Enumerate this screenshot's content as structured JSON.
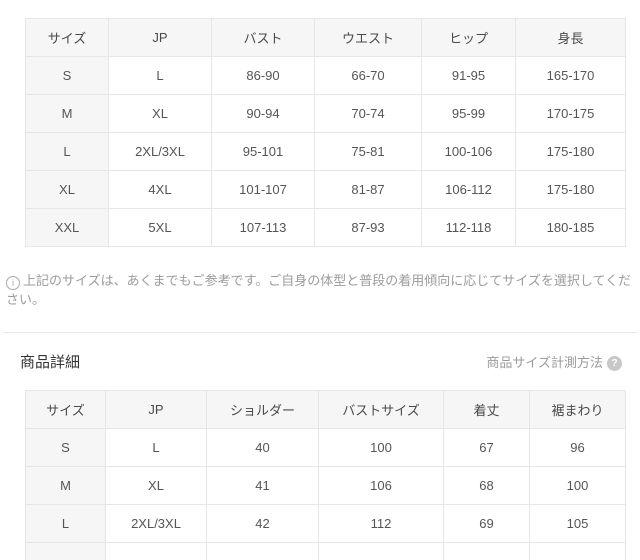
{
  "body_size_chart": {
    "columns": [
      "サイズ",
      "JP",
      "バスト",
      "ウエスト",
      "ヒップ",
      "身長"
    ],
    "rows": [
      [
        "S",
        "L",
        "86-90",
        "66-70",
        "91-95",
        "165-170"
      ],
      [
        "M",
        "XL",
        "90-94",
        "70-74",
        "95-99",
        "170-175"
      ],
      [
        "L",
        "2XL/3XL",
        "95-101",
        "75-81",
        "100-106",
        "175-180"
      ],
      [
        "XL",
        "4XL",
        "101-107",
        "81-87",
        "106-112",
        "175-180"
      ],
      [
        "XXL",
        "5XL",
        "107-113",
        "87-93",
        "112-118",
        "180-185"
      ]
    ]
  },
  "note": {
    "icon": "i",
    "text": "上記のサイズは、あくまでもご参考です。ご自身の体型と普段の着用傾向に応じてサイズを選択してください。"
  },
  "detail_section": {
    "title": "商品詳細",
    "measure_link_label": "商品サイズ計測方法",
    "help_icon": "?"
  },
  "product_detail_chart": {
    "columns": [
      "サイズ",
      "JP",
      "ショルダー",
      "バストサイズ",
      "着丈",
      "裾まわり"
    ],
    "rows": [
      [
        "S",
        "L",
        "40",
        "100",
        "67",
        "96"
      ],
      [
        "M",
        "XL",
        "41",
        "106",
        "68",
        "100"
      ],
      [
        "L",
        "2XL/3XL",
        "42",
        "112",
        "69",
        "105"
      ]
    ]
  },
  "colors": {
    "table_header_bg": "#f6f6f6",
    "table_border": "#e6e6e6",
    "cell_text": "#555555",
    "note_text": "#9c9c9c",
    "title_text": "#333333",
    "link_text": "#9b9b9b",
    "help_icon_bg": "#c8c8c8"
  }
}
